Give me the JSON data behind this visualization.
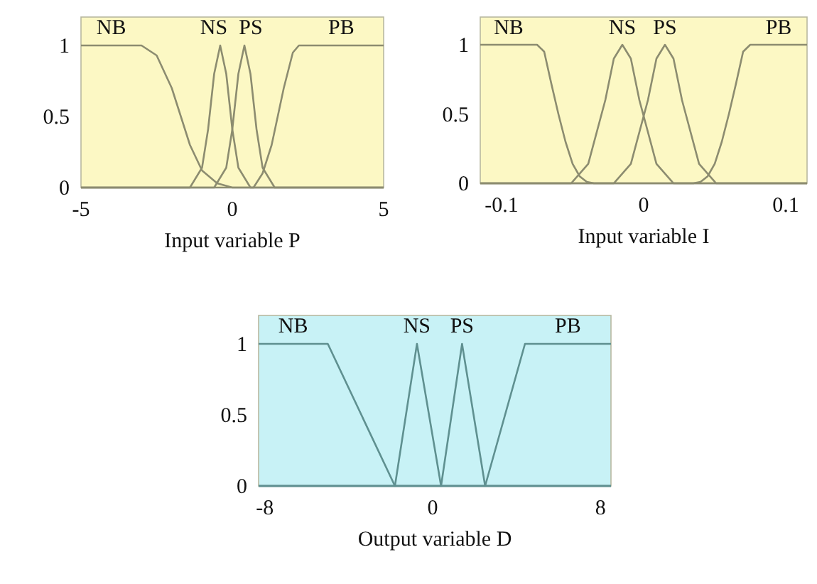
{
  "chart_data": [
    {
      "type": "line",
      "xlabel": "Input variable P",
      "xlim": [
        -5,
        5
      ],
      "xticks": [
        -5,
        0,
        5
      ],
      "ylim": [
        0,
        1.2
      ],
      "yticks": [
        0,
        0.5,
        1
      ],
      "grid": false,
      "marker": "none",
      "line_style": "solid",
      "series": [
        {
          "name": "NB",
          "color": "#8c8c70",
          "x": [
            -5,
            -3,
            -2.5,
            -2,
            -1.7,
            -1.4,
            -1,
            -0.5,
            0,
            5
          ],
          "values": [
            1,
            1,
            0.93,
            0.7,
            0.5,
            0.3,
            0.12,
            0.03,
            0,
            0
          ]
        },
        {
          "name": "NS",
          "color": "#8c8c70",
          "x": [
            -5,
            -1.4,
            -1,
            -0.8,
            -0.6,
            -0.4,
            -0.2,
            0,
            0.2,
            0.6,
            5
          ],
          "values": [
            0,
            0,
            0.14,
            0.41,
            0.8,
            1,
            0.8,
            0.41,
            0.14,
            0,
            0
          ]
        },
        {
          "name": "PS",
          "color": "#8c8c70",
          "x": [
            -5,
            -0.6,
            -0.2,
            0,
            0.2,
            0.4,
            0.6,
            0.8,
            1,
            1.4,
            5
          ],
          "values": [
            0,
            0,
            0.14,
            0.41,
            0.8,
            1,
            0.8,
            0.41,
            0.14,
            0,
            0
          ]
        },
        {
          "name": "PB",
          "color": "#8c8c70",
          "x": [
            -5,
            0.7,
            1,
            1.3,
            1.5,
            1.7,
            2,
            2.2,
            5
          ],
          "values": [
            0,
            0,
            0.1,
            0.3,
            0.5,
            0.7,
            0.95,
            1,
            1
          ]
        }
      ]
    },
    {
      "type": "line",
      "xlabel": "Input variable I",
      "xlim": [
        -0.115,
        0.115
      ],
      "xticks": [
        -0.1,
        0,
        0.1
      ],
      "ylim": [
        0,
        1.2
      ],
      "yticks": [
        0,
        0.5,
        1
      ],
      "grid": false,
      "marker": "none",
      "line_style": "solid",
      "series": [
        {
          "name": "NB",
          "color": "#8c8c70",
          "x": [
            -0.115,
            -0.075,
            -0.07,
            -0.065,
            -0.06,
            -0.055,
            -0.05,
            -0.045,
            -0.04,
            -0.035,
            0.115
          ],
          "values": [
            1,
            1,
            0.95,
            0.72,
            0.5,
            0.3,
            0.14,
            0.05,
            0.01,
            0,
            0
          ]
        },
        {
          "name": "NS",
          "color": "#8c8c70",
          "x": [
            -0.115,
            -0.051,
            -0.039,
            -0.027,
            -0.021,
            -0.015,
            -0.009,
            -0.003,
            0.009,
            0.021,
            0.115
          ],
          "values": [
            0,
            0,
            0.14,
            0.6,
            0.9,
            1,
            0.9,
            0.6,
            0.14,
            0,
            0
          ]
        },
        {
          "name": "PS",
          "color": "#8c8c70",
          "x": [
            -0.115,
            -0.021,
            -0.009,
            0.003,
            0.009,
            0.015,
            0.021,
            0.027,
            0.039,
            0.051,
            0.115
          ],
          "values": [
            0,
            0,
            0.14,
            0.6,
            0.9,
            1,
            0.9,
            0.6,
            0.14,
            0,
            0
          ]
        },
        {
          "name": "PB",
          "color": "#8c8c70",
          "x": [
            -0.115,
            0.035,
            0.04,
            0.045,
            0.05,
            0.055,
            0.06,
            0.065,
            0.07,
            0.075,
            0.115
          ],
          "values": [
            0,
            0,
            0.01,
            0.05,
            0.14,
            0.3,
            0.5,
            0.72,
            0.95,
            1,
            1
          ]
        }
      ]
    },
    {
      "type": "line",
      "xlabel": "Output variable D",
      "xlim": [
        -8.3,
        8.5
      ],
      "xticks": [
        -8,
        0,
        8
      ],
      "ylim": [
        0,
        1.2
      ],
      "yticks": [
        0,
        0.5,
        1
      ],
      "grid": false,
      "marker": "none",
      "line_style": "solid",
      "series": [
        {
          "name": "NB",
          "color": "#5f9090",
          "x": [
            -8.3,
            -5,
            -1.8,
            8.5
          ],
          "values": [
            1,
            1,
            0,
            0
          ]
        },
        {
          "name": "NS",
          "color": "#5f9090",
          "x": [
            -8.3,
            -1.8,
            -0.75,
            0.4,
            8.5
          ],
          "values": [
            0,
            0,
            1,
            0,
            0
          ]
        },
        {
          "name": "PS",
          "color": "#5f9090",
          "x": [
            -8.3,
            0.4,
            1.4,
            2.5,
            8.5
          ],
          "values": [
            0,
            0,
            1,
            0,
            0
          ]
        },
        {
          "name": "PB",
          "color": "#5f9090",
          "x": [
            -8.3,
            2.5,
            4.4,
            8.5
          ],
          "values": [
            0,
            0,
            1,
            1
          ]
        }
      ]
    }
  ]
}
